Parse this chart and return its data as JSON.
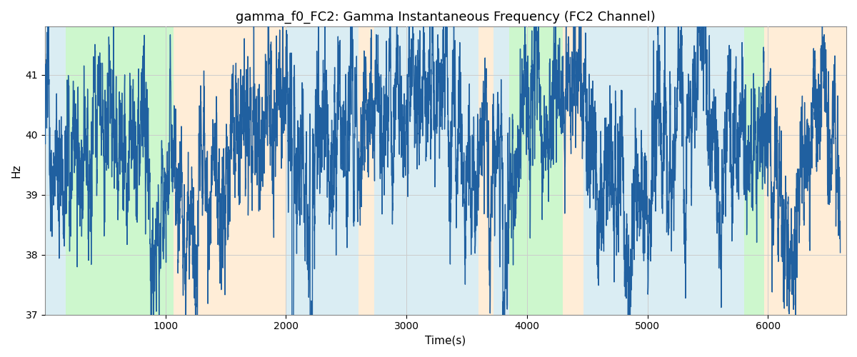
{
  "title": "gamma_f0_FC2: Gamma Instantaneous Frequency (FC2 Channel)",
  "xlabel": "Time(s)",
  "ylabel": "Hz",
  "ylim": [
    37,
    41.8
  ],
  "xlim": [
    0,
    6650
  ],
  "yticks": [
    37,
    38,
    39,
    40,
    41
  ],
  "xticks": [
    1000,
    2000,
    3000,
    4000,
    5000,
    6000
  ],
  "line_color": "#2060a0",
  "line_width": 1.0,
  "background_color": "#ffffff",
  "grid_color": "#cccccc",
  "title_fontsize": 13,
  "label_fontsize": 11,
  "bands": [
    {
      "start": 0,
      "end": 170,
      "color": "#add8e6",
      "alpha": 0.45
    },
    {
      "start": 170,
      "end": 1070,
      "color": "#90ee90",
      "alpha": 0.45
    },
    {
      "start": 1070,
      "end": 2000,
      "color": "#ffd8a8",
      "alpha": 0.45
    },
    {
      "start": 2000,
      "end": 2600,
      "color": "#add8e6",
      "alpha": 0.45
    },
    {
      "start": 2600,
      "end": 2730,
      "color": "#ffd8a8",
      "alpha": 0.45
    },
    {
      "start": 2730,
      "end": 3600,
      "color": "#add8e6",
      "alpha": 0.45
    },
    {
      "start": 3600,
      "end": 3720,
      "color": "#ffd8a8",
      "alpha": 0.45
    },
    {
      "start": 3720,
      "end": 3850,
      "color": "#add8e6",
      "alpha": 0.45
    },
    {
      "start": 3850,
      "end": 4300,
      "color": "#90ee90",
      "alpha": 0.45
    },
    {
      "start": 4300,
      "end": 4470,
      "color": "#ffd8a8",
      "alpha": 0.45
    },
    {
      "start": 4470,
      "end": 5030,
      "color": "#add8e6",
      "alpha": 0.45
    },
    {
      "start": 5030,
      "end": 5800,
      "color": "#add8e6",
      "alpha": 0.45
    },
    {
      "start": 5800,
      "end": 5970,
      "color": "#90ee90",
      "alpha": 0.45
    },
    {
      "start": 5970,
      "end": 6650,
      "color": "#ffd8a8",
      "alpha": 0.45
    }
  ],
  "seed": 12345,
  "n_points": 6600,
  "base_freq": 40.0
}
